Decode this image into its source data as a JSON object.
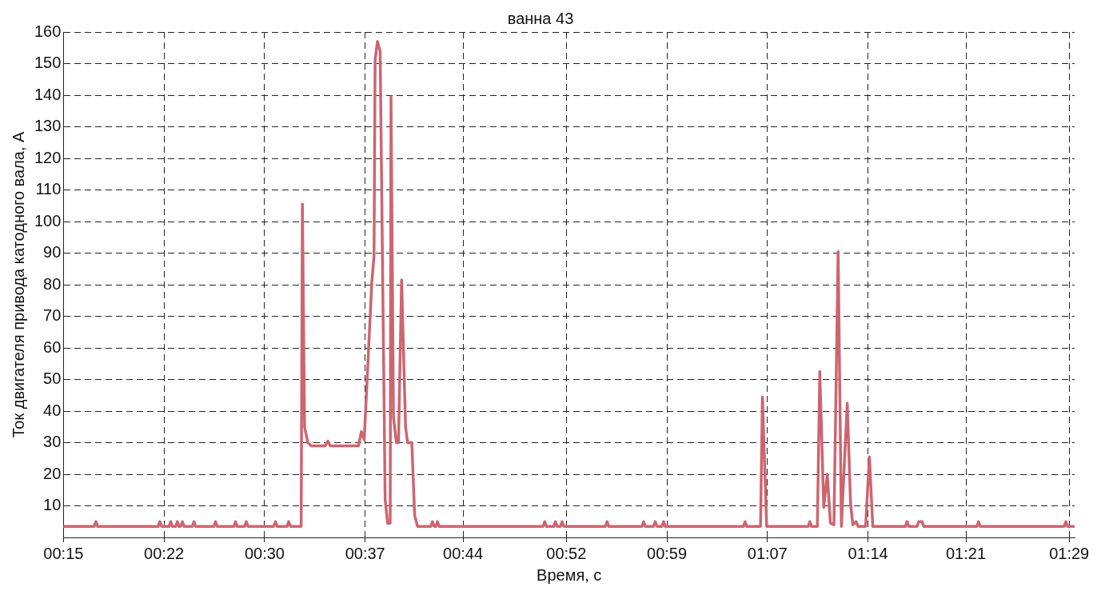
{
  "chart_data": {
    "type": "line",
    "title": "ванна 43",
    "xlabel": "Время, с",
    "ylabel": "Ток двигателя привода катодного вала, А",
    "xlim": [
      15,
      89.4
    ],
    "ylim": [
      0,
      160
    ],
    "xticks": [
      {
        "value": 15,
        "label": "00:15"
      },
      {
        "value": 22.4,
        "label": "00:22"
      },
      {
        "value": 29.8,
        "label": "00:30"
      },
      {
        "value": 37.2,
        "label": "00:37"
      },
      {
        "value": 44.4,
        "label": "00:44"
      },
      {
        "value": 52,
        "label": "00:52"
      },
      {
        "value": 59.4,
        "label": "00:59"
      },
      {
        "value": 66.8,
        "label": "01:07"
      },
      {
        "value": 74.2,
        "label": "01:14"
      },
      {
        "value": 81.4,
        "label": "01:21"
      },
      {
        "value": 89,
        "label": "01:29"
      }
    ],
    "yticks": [
      {
        "value": 0,
        "label": null
      },
      10,
      20,
      30,
      40,
      50,
      60,
      70,
      80,
      90,
      100,
      110,
      120,
      130,
      140,
      150,
      160
    ],
    "grid": true,
    "line_style": "solid",
    "marker": "none",
    "legend": false,
    "series": [
      {
        "color": "#cd6571",
        "x": [
          15,
          17.26,
          17.39,
          17.51,
          21.97,
          22.09,
          22.22,
          22.77,
          22.89,
          23.01,
          23.26,
          23.38,
          23.5,
          23.62,
          23.75,
          23.87,
          24.48,
          24.6,
          24.73,
          26.07,
          26.19,
          26.31,
          27.54,
          27.66,
          27.78,
          28.33,
          28.45,
          28.58,
          30.47,
          30.6,
          30.72,
          31.45,
          31.57,
          31.7,
          32.49,
          32.58,
          32.74,
          32.98,
          33.23,
          34.26,
          34.45,
          34.63,
          36.71,
          36.92,
          37.13,
          37.69,
          37.85,
          37.93,
          38.1,
          38.3,
          38.67,
          38.85,
          39.04,
          39.1,
          39.28,
          39.5,
          39.65,
          39.88,
          40.17,
          40.32,
          40.63,
          40.84,
          41.05,
          42.03,
          42.15,
          42.28,
          42.4,
          42.52,
          42.64,
          50.29,
          50.41,
          50.53,
          51.08,
          51.2,
          51.33,
          51.57,
          51.69,
          51.82,
          54.87,
          55,
          55.12,
          57.57,
          57.69,
          57.81,
          58.42,
          58.54,
          58.67,
          59.03,
          59.16,
          59.28,
          65.03,
          65.15,
          65.27,
          66.29,
          66.43,
          66.74,
          69.8,
          69.92,
          70.04,
          70.47,
          70.65,
          70.94,
          71.2,
          71.43,
          71.69,
          72,
          72.24,
          72.67,
          72.91,
          73.08,
          73.32,
          73.47,
          74.02,
          74.3,
          74.55,
          76.95,
          77.07,
          77.2,
          77.81,
          77.93,
          78.18,
          78.3,
          82.21,
          82.33,
          82.45,
          88.63,
          88.76,
          88.88,
          89.4
        ],
        "values": [
          3.5,
          3.5,
          5,
          3.5,
          3.5,
          5,
          3.5,
          3.5,
          5,
          3.5,
          3.5,
          5,
          3.5,
          3.5,
          5,
          3.5,
          3.5,
          5,
          3.5,
          3.5,
          5,
          3.5,
          3.5,
          5,
          3.5,
          3.5,
          5,
          3.5,
          3.5,
          5,
          3.5,
          3.5,
          5,
          3.5,
          3.5,
          105.5,
          35,
          30,
          29,
          29,
          30.5,
          29,
          29,
          33.5,
          31,
          81,
          89,
          151,
          157,
          154,
          12,
          4.5,
          4.5,
          139.5,
          38,
          30,
          30,
          81.5,
          35,
          30,
          30,
          7,
          3.5,
          3.5,
          5,
          3.5,
          3.5,
          5,
          3.5,
          3.5,
          5,
          3.5,
          3.5,
          5,
          3.5,
          3.5,
          5,
          3.5,
          3.5,
          5,
          3.5,
          3.5,
          5,
          3.5,
          3.5,
          5,
          3.5,
          3.5,
          5,
          3.5,
          3.5,
          5,
          3.5,
          3.5,
          44.5,
          3.5,
          3.5,
          5,
          3.5,
          3.5,
          52.5,
          9.5,
          20,
          4.5,
          4,
          90.5,
          3.5,
          42.5,
          11,
          4,
          5,
          3.5,
          3.5,
          25.5,
          3.5,
          3.5,
          5,
          3.5,
          3.5,
          5,
          5,
          3.5,
          3.5,
          5,
          3.5,
          3.5,
          5,
          3.5,
          3.5
        ]
      }
    ]
  }
}
